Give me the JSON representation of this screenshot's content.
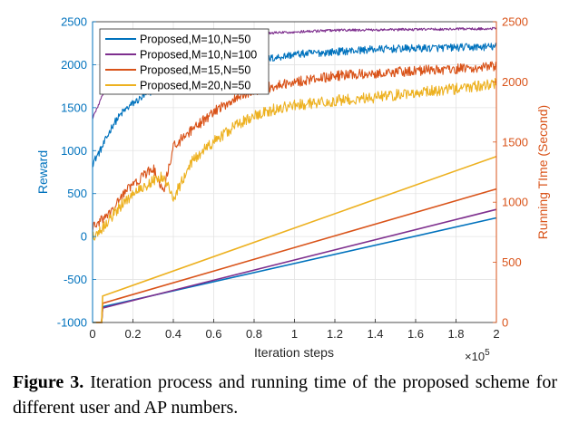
{
  "chart_data": {
    "type": "line",
    "xlabel": "Iteration steps",
    "x_multiplier_label": "×10",
    "x_multiplier_exponent": "5",
    "ylabel_left": "Reward",
    "ylabel_right": "Running TIme (Second)",
    "xlim": [
      0,
      2
    ],
    "ylim_left": [
      -1000,
      2500
    ],
    "ylim_right": [
      0,
      2500
    ],
    "x_ticks": [
      "0",
      "0.2",
      "0.4",
      "0.6",
      "0.8",
      "1",
      "1.2",
      "1.4",
      "1.6",
      "1.8",
      "2"
    ],
    "y_left_ticks": [
      "-1000",
      "-500",
      "0",
      "500",
      "1000",
      "1500",
      "2000",
      "2500"
    ],
    "y_right_ticks": [
      "0",
      "500",
      "1000",
      "1500",
      "2000",
      "2500"
    ],
    "grid": true,
    "legend_position": "top-left",
    "colors": {
      "left_axis": "#0072BD",
      "right_axis": "#D95319"
    },
    "series": [
      {
        "name": "Proposed,M=10,N=50",
        "color": "#0072BD",
        "reward": {
          "x": [
            0,
            0.05,
            0.1,
            0.15,
            0.2,
            0.3,
            0.4,
            0.5,
            0.6,
            0.7,
            0.8,
            0.9,
            1.0,
            1.2,
            1.4,
            1.6,
            1.8,
            2.0
          ],
          "y": [
            850,
            1050,
            1300,
            1450,
            1550,
            1700,
            1800,
            1880,
            1950,
            2000,
            2050,
            2080,
            2120,
            2150,
            2180,
            2190,
            2200,
            2210
          ],
          "noise": 45
        },
        "time": {
          "x": [
            0,
            0.045,
            0.05,
            2.0
          ],
          "y": [
            0,
            0,
            130,
            870
          ]
        }
      },
      {
        "name": "Proposed,M=10,N=100",
        "color": "#7E2F8E",
        "reward": {
          "x": [
            0,
            0.02,
            0.05,
            0.1,
            0.15,
            0.2,
            0.3,
            0.4,
            0.6,
            0.8,
            1.0,
            1.2,
            1.4,
            1.6,
            1.8,
            2.0
          ],
          "y": [
            1380,
            1480,
            1650,
            1900,
            2050,
            2150,
            2230,
            2280,
            2330,
            2360,
            2380,
            2400,
            2405,
            2410,
            2415,
            2420
          ],
          "noise": 15
        },
        "time": {
          "x": [
            0,
            0.045,
            0.05,
            2.0
          ],
          "y": [
            0,
            0,
            120,
            940
          ]
        }
      },
      {
        "name": "Proposed,M=15,N=50",
        "color": "#D95319",
        "reward": {
          "x": [
            0,
            0.05,
            0.1,
            0.15,
            0.2,
            0.25,
            0.3,
            0.35,
            0.4,
            0.5,
            0.6,
            0.7,
            0.8,
            0.9,
            1.0,
            1.2,
            1.4,
            1.6,
            1.8,
            2.0
          ],
          "y": [
            100,
            200,
            300,
            500,
            600,
            700,
            800,
            500,
            1050,
            1250,
            1450,
            1600,
            1700,
            1750,
            1800,
            1870,
            1900,
            1930,
            1950,
            1980
          ],
          "noise": 60
        },
        "time": {
          "x": [
            0,
            0.045,
            0.05,
            2.0
          ],
          "y": [
            0,
            0,
            160,
            1110
          ]
        }
      },
      {
        "name": "Proposed,M=20,N=50",
        "color": "#EDB120",
        "reward": {
          "x": [
            0,
            0.05,
            0.1,
            0.15,
            0.2,
            0.3,
            0.35,
            0.4,
            0.5,
            0.6,
            0.7,
            0.8,
            0.9,
            1.0,
            1.2,
            1.4,
            1.6,
            1.8,
            2.0
          ],
          "y": [
            0,
            100,
            250,
            380,
            500,
            650,
            700,
            450,
            900,
            1100,
            1280,
            1400,
            1480,
            1530,
            1580,
            1620,
            1680,
            1720,
            1780
          ],
          "noise": 65
        },
        "time": {
          "x": [
            0,
            0.045,
            0.05,
            2.0
          ],
          "y": [
            0,
            0,
            220,
            1380
          ]
        }
      }
    ]
  },
  "caption": {
    "label": "Figure 3.",
    "text": " Iteration process and running time of the proposed scheme for different user and AP numbers."
  }
}
